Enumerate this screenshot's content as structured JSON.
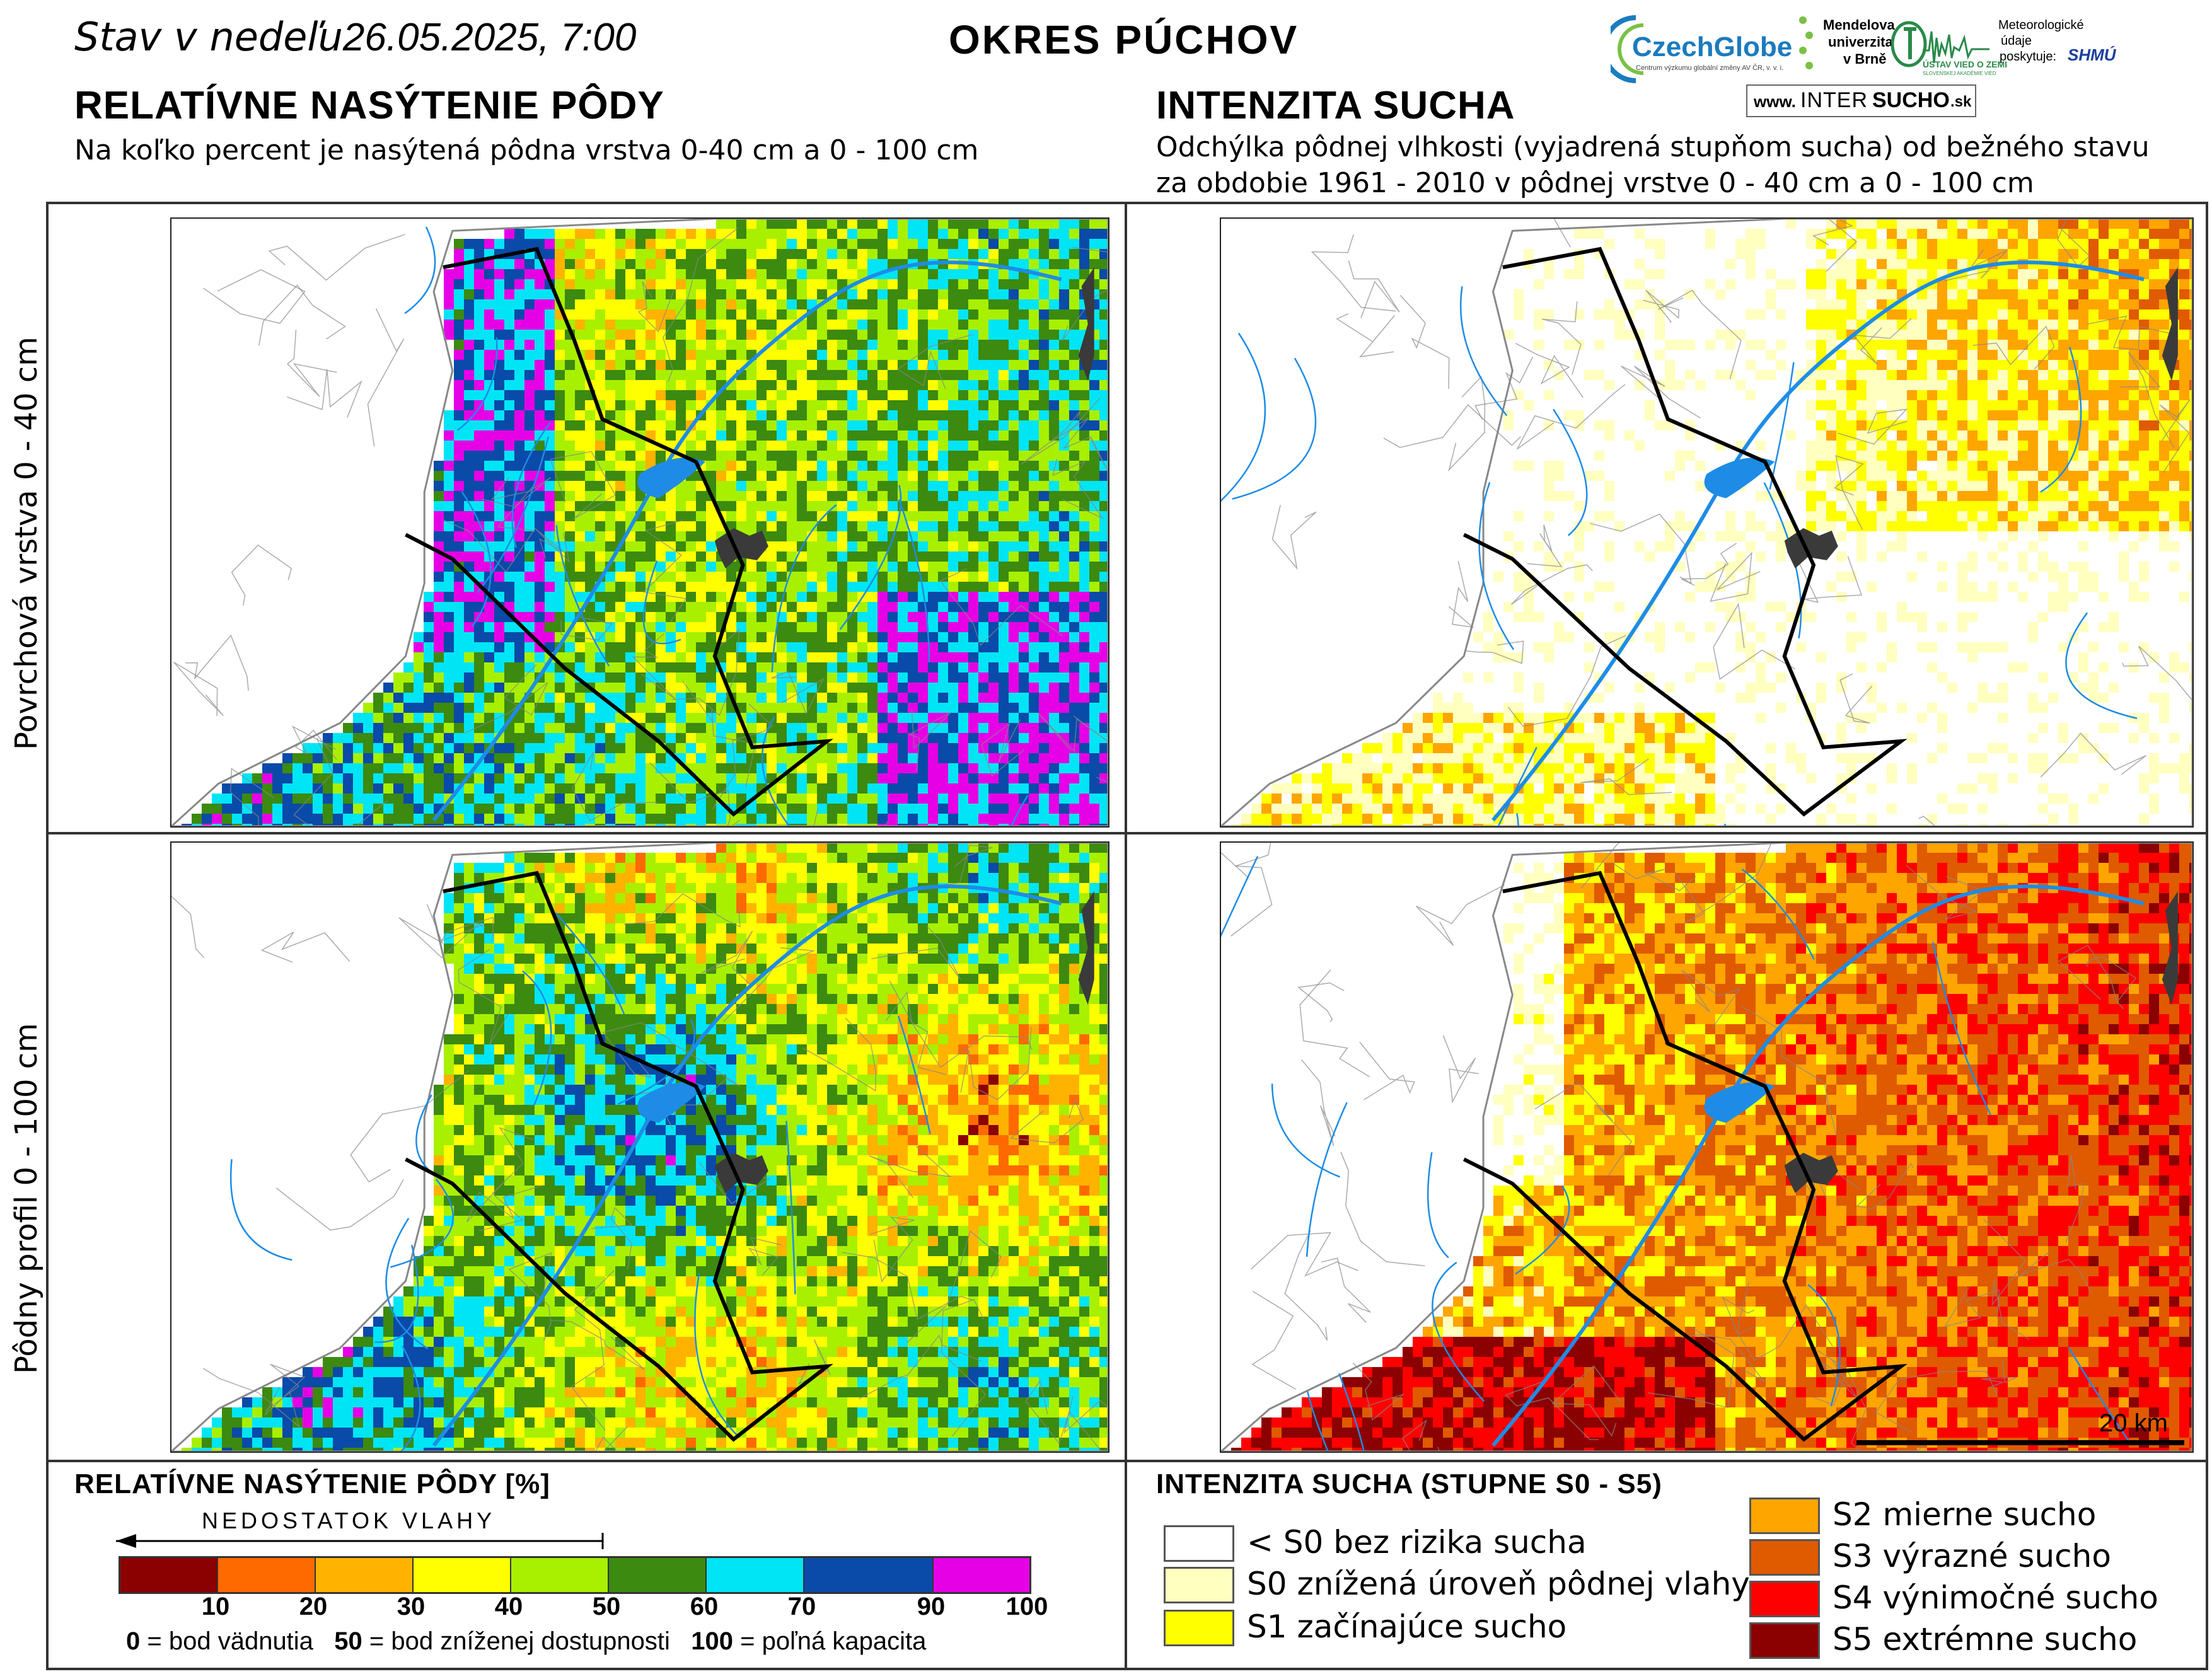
{
  "header": {
    "date_prefix": "Stav v nedeľu",
    "date_value": "26.05.2025, 7:00",
    "district": "OKRES PÚCHOV"
  },
  "left_panel": {
    "title": "RELATÍVNE NASÝTENIE PÔDY",
    "subtitle": "Na koľko percent je nasýtená pôdna vrstva 0-40 cm a 0 - 100 cm"
  },
  "right_panel": {
    "title": "INTENZITA SUCHA",
    "subtitle_line1": "Odchýlka pôdnej vlhkosti (vyjadrená stupňom sucha) od bežného stavu",
    "subtitle_line2": "za obdobie 1961 - 2010 v pôdnej vrstve 0 - 40 cm a 0 - 100 cm"
  },
  "row_labels": {
    "top": "Povrchová vrstva 0 - 40 cm",
    "bottom": "Pôdny profil 0 - 100 cm"
  },
  "logos": {
    "czechglobe": "CzechGlobe",
    "czechglobe_sub": "Centrum výzkumu globální změny AV ČR, v. v. i.",
    "mendelu_line1": "Mendelova",
    "mendelu_line2": "univerzita",
    "mendelu_line3": "v Brně",
    "usvz_line1": "ÚSTAV VIED O ZEMI",
    "usvz_line2": "SLOVENSKEJ AKADÉMIE VIED",
    "shmu_line1": "Meteorologické",
    "shmu_line2": "údaje",
    "shmu_line3": "poskytuje:",
    "shmu_logo": "SHMÚ",
    "intersucho_www": "www.",
    "intersucho_a": "INTER",
    "intersucho_b": "SUCHO",
    "intersucho_c": ".sk"
  },
  "scale_bar": {
    "label": "20 km"
  },
  "left_legend": {
    "title": "RELATÍVNE NASÝTENIE PÔDY [%]",
    "arrow_label": "NEDOSTATOK VLAHY",
    "colors": [
      "#8b0000",
      "#ff6a00",
      "#ffb300",
      "#ffff00",
      "#a8f000",
      "#3c8a0f",
      "#00e5f5",
      "#0a4aa8",
      "#e600e6"
    ],
    "tick_labels": [
      "10",
      "20",
      "30",
      "40",
      "50",
      "60",
      "70",
      "90",
      "100"
    ],
    "note_0_value": "0",
    "note_0_text": "= bod vädnutia",
    "note_50_value": "50",
    "note_50_text": "= bod zníženej dostupnosti",
    "note_100_value": "100",
    "note_100_text": "= poľná kapacita"
  },
  "right_legend": {
    "title": "INTENZITA SUCHA (STUPNE S0 - S5)",
    "items": [
      {
        "label": "< S0 bez rizika sucha",
        "color": "#ffffff"
      },
      {
        "label": "S0 znížená úroveň pôdnej vlahy",
        "color": "#ffffc0"
      },
      {
        "label": "S1 začínajúce sucho",
        "color": "#ffff00"
      },
      {
        "label": "S2 mierne sucho",
        "color": "#ffa500"
      },
      {
        "label": "S3 výrazné sucho",
        "color": "#e05a00"
      },
      {
        "label": "S4 výnimočné sucho",
        "color": "#ff0000"
      },
      {
        "label": "S5 extrémne sucho",
        "color": "#8b0000"
      }
    ]
  },
  "map_colors": {
    "river": "#1e8ce6",
    "lake": "#1e8ce6",
    "town": "#3a3a3a",
    "district_border": "#000000",
    "municipal_border": "#888888"
  }
}
